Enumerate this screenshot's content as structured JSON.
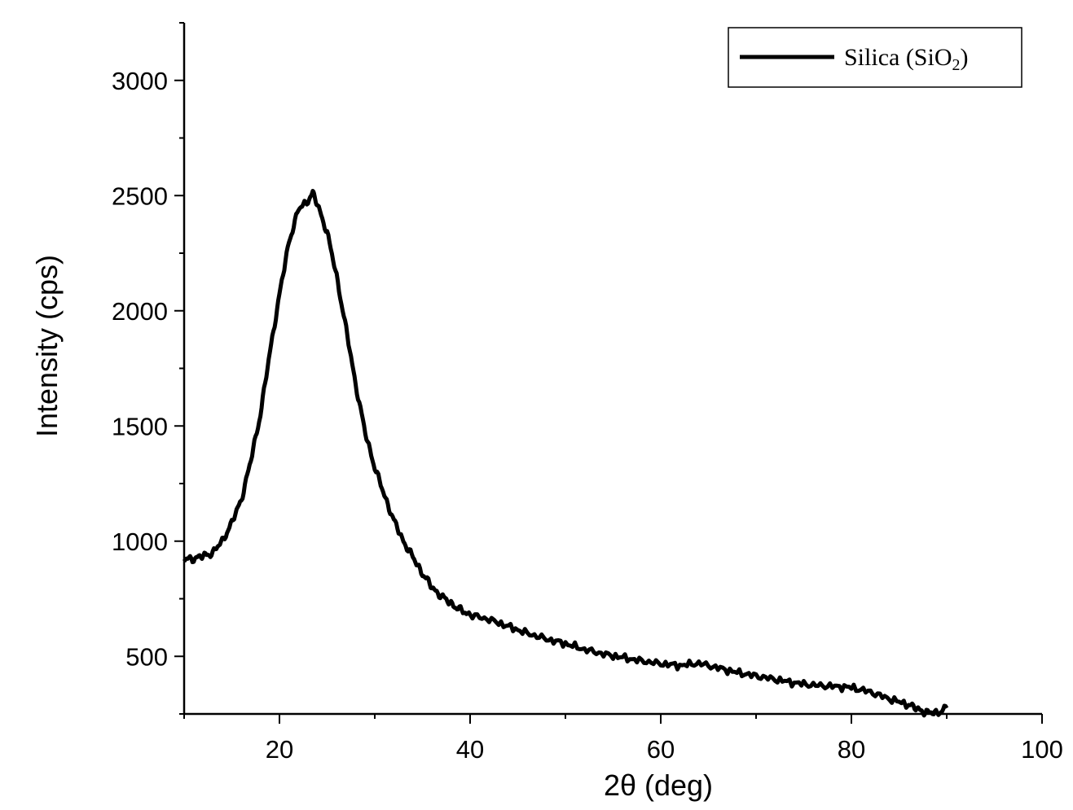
{
  "chart_data": {
    "type": "line",
    "title": "",
    "xlabel": "2θ (deg)",
    "ylabel": "Intensity (cps)",
    "xlim": [
      10,
      100
    ],
    "ylim": [
      250,
      3250
    ],
    "x_ticks": [
      20,
      40,
      60,
      80,
      100
    ],
    "x_tick_labels": [
      "20",
      "40",
      "60",
      "80",
      "100"
    ],
    "y_ticks": [
      500,
      1000,
      1500,
      2000,
      2500,
      3000
    ],
    "y_tick_labels": [
      "500",
      "1000",
      "1500",
      "2000",
      "2500",
      "3000"
    ],
    "grid": false,
    "legend_position": "top-right",
    "series": [
      {
        "name": "Silica (SiO",
        "name_subscript": "2",
        "name_suffix": ")",
        "color": "#000000",
        "x": [
          10,
          11,
          12,
          13,
          14,
          15,
          16,
          17,
          18,
          19,
          20,
          21,
          22,
          23,
          23.5,
          24,
          25,
          26,
          27,
          28,
          29,
          30,
          31,
          32,
          33,
          34,
          35,
          36,
          37,
          38,
          39,
          40,
          42,
          44,
          46,
          48,
          50,
          52,
          54,
          56,
          58,
          60,
          62,
          64,
          66,
          68,
          70,
          72,
          74,
          76,
          78,
          80,
          82,
          84,
          86,
          87,
          88,
          89,
          90
        ],
        "y": [
          920,
          925,
          935,
          950,
          1000,
          1080,
          1180,
          1350,
          1550,
          1820,
          2070,
          2300,
          2440,
          2480,
          2510,
          2460,
          2340,
          2150,
          1920,
          1680,
          1470,
          1320,
          1200,
          1090,
          1000,
          930,
          860,
          800,
          760,
          730,
          700,
          680,
          660,
          630,
          600,
          575,
          555,
          530,
          510,
          495,
          480,
          468,
          460,
          470,
          450,
          430,
          415,
          400,
          385,
          375,
          370,
          365,
          345,
          315,
          290,
          270,
          255,
          255,
          275
        ]
      }
    ]
  }
}
